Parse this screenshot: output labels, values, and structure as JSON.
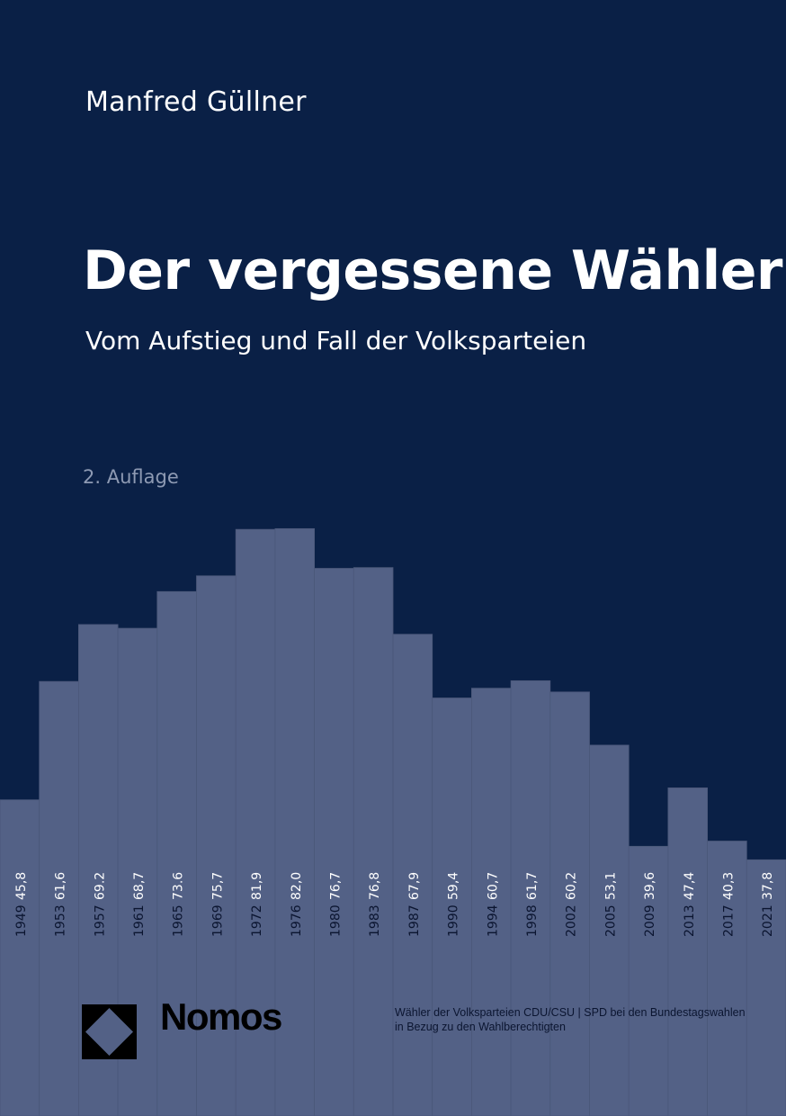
{
  "author": "Manfred Güllner",
  "title": "Der vergessene Wähler",
  "subtitle": "Vom Aufstieg und Fall der Volksparteien",
  "edition": "2. Auflage",
  "publisher": "Nomos",
  "caption": {
    "line1": "Wähler der Volksparteien CDU/CSU | SPD bei den Bundestagswahlen",
    "line2": "in Bezug zu den Wahlberechtigten"
  },
  "colors": {
    "background": "#0a2046",
    "bars": "#536186",
    "year_label": "#0b1530",
    "value_label": "#ffffff"
  },
  "chart_data": {
    "type": "bar",
    "categories": [
      "1949",
      "1953",
      "1957",
      "1961",
      "1965",
      "1969",
      "1972",
      "1976",
      "1980",
      "1983",
      "1987",
      "1990",
      "1994",
      "1998",
      "2002",
      "2005",
      "2009",
      "2013",
      "2017",
      "2021"
    ],
    "values": [
      45.8,
      61.6,
      69.2,
      68.7,
      73.6,
      75.7,
      81.9,
      82.0,
      76.7,
      76.8,
      67.9,
      59.4,
      60.7,
      61.7,
      60.2,
      53.1,
      39.6,
      47.4,
      40.3,
      37.8
    ],
    "value_labels": [
      "45,8",
      "61,6",
      "69.2",
      "68,7",
      "73.6",
      "75,7",
      "81,9",
      "82,0",
      "76,7",
      "76,8",
      "67,9",
      "59,4",
      "60,7",
      "61,7",
      "60,2",
      "53,1",
      "39,6",
      "47,4",
      "40,3",
      "37,8"
    ],
    "title": "Wähler der Volksparteien CDU/CSU | SPD bei den Bundestagswahlen in Bezug zu den Wahlberechtigten",
    "xlabel": "",
    "ylabel": "",
    "grid": false
  }
}
